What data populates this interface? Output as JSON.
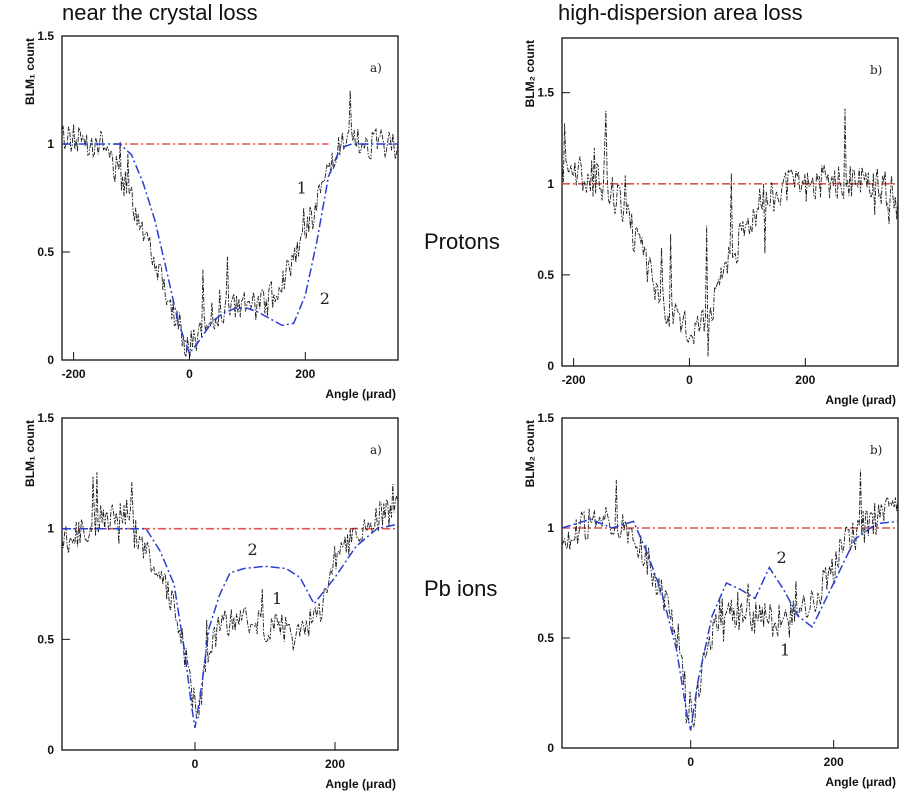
{
  "figure": {
    "col_titles": [
      "near the crystal loss",
      "high-dispersion area loss"
    ],
    "row_labels": [
      "Protons",
      "Pb ions"
    ]
  },
  "colors": {
    "data": "#1a1a1a",
    "model": "#2a3fd0",
    "reference": "#e0524a",
    "axis": "#111111"
  },
  "chart_data": [
    {
      "id": "protons-crystal",
      "type": "line",
      "panel_label": "a)",
      "xlabel": "Angle (μrad)",
      "ylabel": "BLM₁ count",
      "xlim": [
        -220,
        360
      ],
      "ylim": [
        0,
        1.5
      ],
      "xticks": [
        -200,
        0,
        200
      ],
      "yticks": [
        0,
        0.5,
        1,
        1.5
      ],
      "ytick_labels": [
        "0",
        "0.5",
        "1",
        "1.5"
      ],
      "reference_y": 1.0,
      "reference_range": [
        -130,
        240
      ],
      "series": [
        {
          "kind": "data",
          "amp": 0.07,
          "spike": 0.18,
          "x": [
            -220,
            -180,
            -150,
            -130,
            -110,
            -90,
            -70,
            -50,
            -30,
            -10,
            0,
            10,
            30,
            50,
            70,
            90,
            110,
            130,
            150,
            170,
            190,
            210,
            230,
            250,
            270,
            300,
            330,
            360
          ],
          "y": [
            1.03,
            1.02,
            1.0,
            0.9,
            0.8,
            0.68,
            0.55,
            0.4,
            0.25,
            0.1,
            0.05,
            0.1,
            0.18,
            0.22,
            0.24,
            0.25,
            0.25,
            0.26,
            0.32,
            0.42,
            0.55,
            0.65,
            0.8,
            0.95,
            1.0,
            1.0,
            1.0,
            1.0
          ]
        },
        {
          "kind": "model",
          "x": [
            -220,
            -120,
            -100,
            -80,
            -60,
            -40,
            -20,
            0,
            20,
            40,
            60,
            80,
            100,
            120,
            140,
            160,
            180,
            200,
            220,
            240,
            260,
            280,
            360
          ],
          "y": [
            1.0,
            1.0,
            0.95,
            0.82,
            0.65,
            0.42,
            0.18,
            0.03,
            0.1,
            0.18,
            0.22,
            0.24,
            0.24,
            0.22,
            0.19,
            0.16,
            0.17,
            0.3,
            0.55,
            0.85,
            0.98,
            1.0,
            1.0
          ]
        }
      ],
      "curve_labels": [
        {
          "text": "1",
          "x": 185,
          "y": 0.77
        },
        {
          "text": "2",
          "x": 225,
          "y": 0.26
        }
      ]
    },
    {
      "id": "protons-dispersion",
      "type": "line",
      "panel_label": "b)",
      "xlabel": "Angle (μrad)",
      "ylabel": "BLM₂ count",
      "xlim": [
        -220,
        360
      ],
      "ylim": [
        0,
        1.8
      ],
      "xticks": [
        -200,
        0,
        200
      ],
      "yticks": [
        0,
        0.5,
        1,
        1.5
      ],
      "ytick_labels": [
        "0",
        "0.5",
        "1",
        "1.5"
      ],
      "reference_y": 1.0,
      "reference_range": [
        -220,
        360
      ],
      "series": [
        {
          "kind": "data",
          "amp": 0.1,
          "spike": 0.45,
          "x": [
            -220,
            -180,
            -150,
            -120,
            -100,
            -80,
            -60,
            -40,
            -20,
            0,
            20,
            40,
            60,
            80,
            100,
            120,
            150,
            180,
            210,
            240,
            270,
            300,
            330,
            360
          ],
          "y": [
            1.1,
            1.05,
            1.0,
            0.9,
            0.75,
            0.6,
            0.45,
            0.32,
            0.23,
            0.2,
            0.25,
            0.35,
            0.5,
            0.65,
            0.8,
            0.88,
            0.95,
            1.0,
            1.0,
            1.02,
            1.0,
            1.0,
            0.98,
            0.95
          ]
        }
      ],
      "curve_labels": []
    },
    {
      "id": "pb-crystal",
      "type": "line",
      "panel_label": "a)",
      "xlabel": "Angle (μrad)",
      "ylabel": "BLM₁ count",
      "xlim": [
        -190,
        290
      ],
      "ylim": [
        0,
        1.5
      ],
      "xticks": [
        0,
        200
      ],
      "yticks": [
        0,
        0.5,
        1,
        1.5
      ],
      "ytick_labels": [
        "0",
        "0.5",
        "1",
        "1.5"
      ],
      "reference_y": 1.0,
      "reference_range": [
        -190,
        290
      ],
      "series": [
        {
          "kind": "data",
          "amp": 0.07,
          "spike": 0.2,
          "x": [
            -190,
            -160,
            -130,
            -100,
            -80,
            -60,
            -40,
            -20,
            -5,
            5,
            20,
            40,
            60,
            80,
            100,
            120,
            140,
            160,
            180,
            200,
            220,
            240,
            260,
            290
          ],
          "y": [
            0.95,
            0.98,
            1.05,
            1.08,
            0.95,
            0.85,
            0.72,
            0.55,
            0.25,
            0.2,
            0.45,
            0.58,
            0.6,
            0.58,
            0.55,
            0.55,
            0.55,
            0.55,
            0.65,
            0.85,
            0.95,
            1.0,
            1.05,
            1.1
          ]
        },
        {
          "kind": "model",
          "x": [
            -190,
            -70,
            -50,
            -30,
            -15,
            -5,
            0,
            10,
            20,
            35,
            50,
            70,
            100,
            130,
            150,
            170,
            200,
            230,
            260,
            290
          ],
          "y": [
            1.0,
            1.0,
            0.9,
            0.75,
            0.45,
            0.2,
            0.1,
            0.3,
            0.55,
            0.7,
            0.8,
            0.82,
            0.83,
            0.82,
            0.78,
            0.66,
            0.78,
            0.92,
            1.0,
            1.02
          ]
        }
      ],
      "curve_labels": [
        {
          "text": "2",
          "x": 75,
          "y": 0.88
        },
        {
          "text": "1",
          "x": 110,
          "y": 0.66
        }
      ]
    },
    {
      "id": "pb-dispersion",
      "type": "line",
      "panel_label": "b)",
      "xlabel": "Angle (μrad)",
      "ylabel": "BLM₂ count",
      "xlim": [
        -180,
        290
      ],
      "ylim": [
        0,
        1.5
      ],
      "xticks": [
        0,
        200
      ],
      "yticks": [
        0,
        0.5,
        1,
        1.5
      ],
      "ytick_labels": [
        "0",
        "0.5",
        "1",
        "1.5"
      ],
      "reference_y": 1.0,
      "reference_range": [
        -180,
        290
      ],
      "series": [
        {
          "kind": "data",
          "amp": 0.08,
          "spike": 0.3,
          "x": [
            -180,
            -150,
            -120,
            -100,
            -80,
            -60,
            -40,
            -20,
            -5,
            5,
            20,
            40,
            60,
            80,
            100,
            120,
            140,
            160,
            180,
            200,
            220,
            240,
            260,
            290
          ],
          "y": [
            0.95,
            1.0,
            1.05,
            1.0,
            0.95,
            0.85,
            0.7,
            0.55,
            0.2,
            0.15,
            0.45,
            0.6,
            0.62,
            0.6,
            0.58,
            0.58,
            0.6,
            0.62,
            0.7,
            0.82,
            0.95,
            1.0,
            1.05,
            1.1
          ]
        },
        {
          "kind": "model",
          "x": [
            -180,
            -140,
            -110,
            -80,
            -60,
            -40,
            -20,
            -5,
            0,
            10,
            30,
            50,
            70,
            90,
            110,
            130,
            150,
            170,
            200,
            230,
            260,
            290
          ],
          "y": [
            1.0,
            1.04,
            1.0,
            1.03,
            0.88,
            0.7,
            0.45,
            0.15,
            0.08,
            0.3,
            0.6,
            0.75,
            0.72,
            0.68,
            0.82,
            0.72,
            0.6,
            0.55,
            0.75,
            0.95,
            1.02,
            1.03
          ]
        }
      ],
      "curve_labels": [
        {
          "text": "2",
          "x": 120,
          "y": 0.84
        },
        {
          "text": "1",
          "x": 125,
          "y": 0.42
        }
      ]
    }
  ]
}
